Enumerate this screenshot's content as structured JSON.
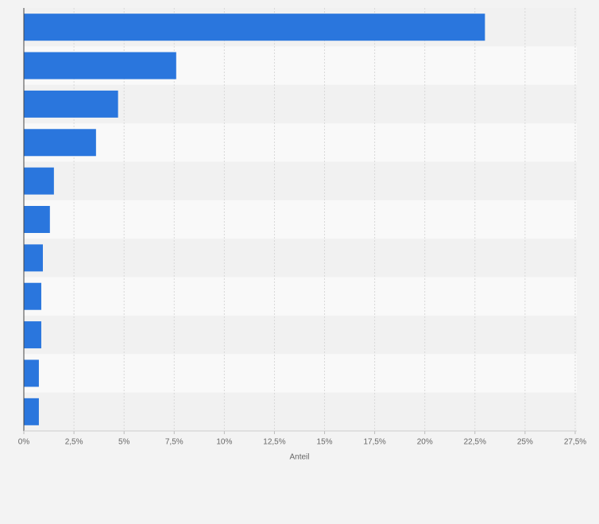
{
  "chart_data": {
    "type": "barh",
    "categories": [
      null,
      null,
      null,
      null,
      null,
      null,
      null,
      null,
      null,
      null,
      null
    ],
    "values": [
      23.0,
      7.6,
      4.7,
      3.6,
      1.5,
      1.3,
      0.95,
      0.87,
      0.87,
      0.75,
      0.75
    ],
    "color": "#2a76dd",
    "xlabel": "Anteil",
    "xlim": [
      0,
      27.5
    ],
    "xticks": [
      {
        "value": 0,
        "label": "0%"
      },
      {
        "value": 2.5,
        "label": "2,5%"
      },
      {
        "value": 5,
        "label": "5%"
      },
      {
        "value": 7.5,
        "label": "7,5%"
      },
      {
        "value": 10,
        "label": "10%"
      },
      {
        "value": 12.5,
        "label": "12,5%"
      },
      {
        "value": 15,
        "label": "15%"
      },
      {
        "value": 17.5,
        "label": "17,5%"
      },
      {
        "value": 20,
        "label": "20%"
      },
      {
        "value": 22.5,
        "label": "22,5%"
      },
      {
        "value": 25,
        "label": "25%"
      },
      {
        "value": 27.5,
        "label": "27,5%"
      }
    ],
    "grid": true
  }
}
